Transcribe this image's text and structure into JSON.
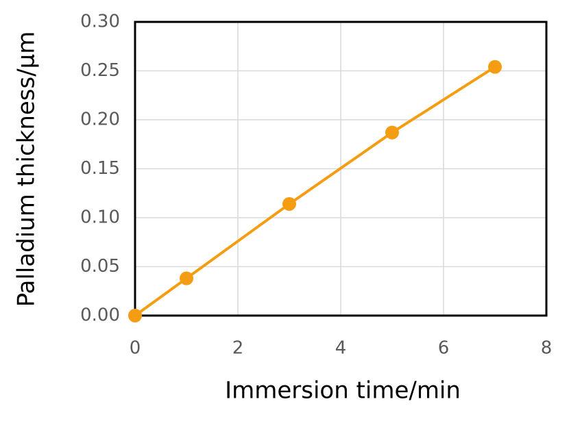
{
  "chart_data": {
    "type": "line",
    "x_label": "Immersion time/min",
    "y_label": "Palladium thickness/μm",
    "x": [
      0,
      1,
      3,
      5,
      7
    ],
    "series": [
      {
        "color": "#f59d12",
        "values": [
          0,
          0.038,
          0.114,
          0.187,
          0.254
        ]
      }
    ],
    "xlim": [
      0,
      8
    ],
    "xticks": [
      0,
      2,
      4,
      6,
      8
    ],
    "ylim": [
      0,
      0.3
    ],
    "yticks": [
      {
        "value": 0,
        "label": "0.00"
      },
      {
        "value": 0.05,
        "label": "0.05"
      },
      {
        "value": 0.1,
        "label": "0.10"
      },
      {
        "value": 0.15,
        "label": "0.15"
      },
      {
        "value": 0.2,
        "label": "0.20"
      },
      {
        "value": 0.25,
        "label": "0.25"
      },
      {
        "value": 0.3,
        "label": "0.30"
      }
    ],
    "grid": true
  }
}
